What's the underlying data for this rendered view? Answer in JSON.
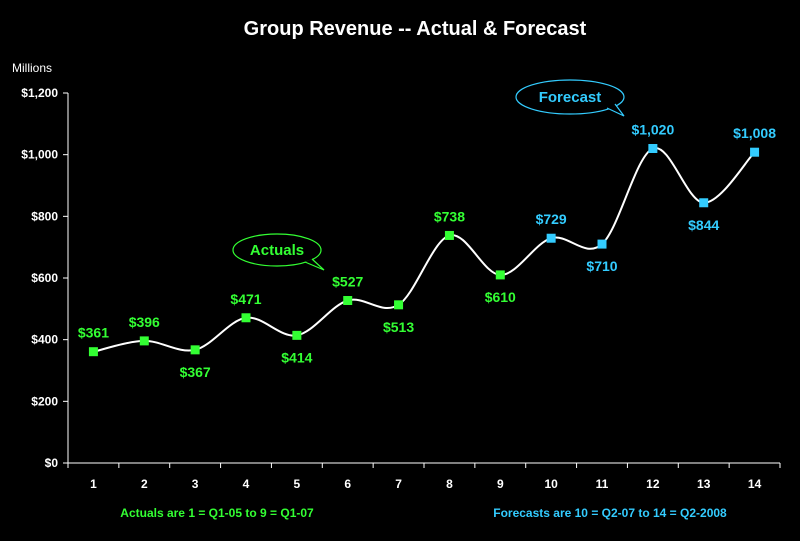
{
  "chart_data": {
    "type": "line",
    "title": "Group Revenue -- Actual & Forecast",
    "ylabel": "Millions",
    "xlabel": "",
    "ylim": [
      0,
      1200
    ],
    "yticks": [
      0,
      200,
      400,
      600,
      800,
      1000,
      1200
    ],
    "ytick_labels": [
      "$0",
      "$200",
      "$400",
      "$600",
      "$800",
      "$1,000",
      "$1,200"
    ],
    "categories": [
      "1",
      "2",
      "3",
      "4",
      "5",
      "6",
      "7",
      "8",
      "9",
      "10",
      "11",
      "12",
      "13",
      "14"
    ],
    "values": [
      361,
      396,
      367,
      471,
      414,
      527,
      513,
      738,
      610,
      729,
      710,
      1020,
      844,
      1008
    ],
    "data_labels": [
      "$361",
      "$396",
      "$367",
      "$471",
      "$414",
      "$527",
      "$513",
      "$738",
      "$610",
      "$729",
      "$710",
      "$1,020",
      "$844",
      "$1,008"
    ],
    "series_type": [
      "actual",
      "actual",
      "actual",
      "actual",
      "actual",
      "actual",
      "actual",
      "actual",
      "actual",
      "forecast",
      "forecast",
      "forecast",
      "forecast",
      "forecast"
    ],
    "line_color": "#ffffff",
    "actual_color": "#33ff33",
    "forecast_color": "#33ccff",
    "grid": false,
    "callouts": {
      "actuals": "Actuals",
      "forecast": "Forecast"
    },
    "notes": {
      "actuals": "Actuals are 1 = Q1-05 to  9 = Q1-07",
      "forecasts": "Forecasts are 10 = Q2-07 to 14 = Q2-2008"
    }
  }
}
